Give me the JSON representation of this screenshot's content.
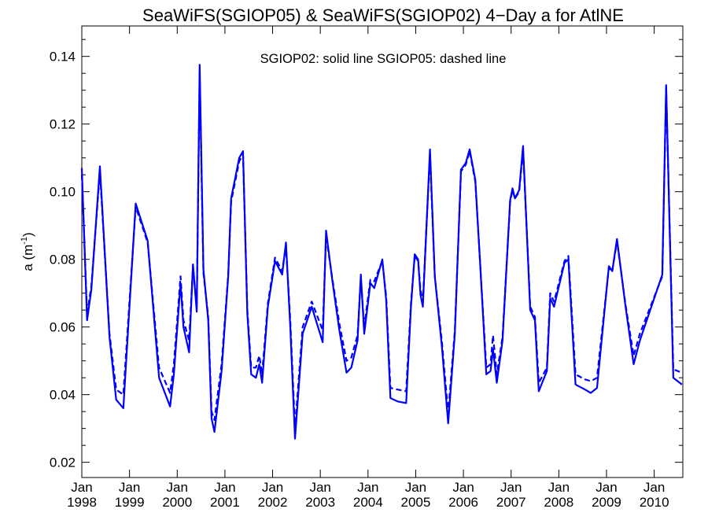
{
  "chart_data": {
    "type": "line",
    "title": "SeaWiFS(SGIOP05) & SeaWiFS(SGIOP02) 4−Day a for AtlNE",
    "annotation": "SGIOP02: solid line   SGIOP05: dashed line",
    "ylabel": "a (m",
    "ylabel_exponent": "-1",
    "ylabel_close": ")",
    "xlim": [
      1998.0,
      2010.6
    ],
    "ylim": [
      0.0155,
      0.149
    ],
    "yticks": [
      "0.02",
      "0.04",
      "0.06",
      "0.08",
      "0.10",
      "0.12",
      "0.14"
    ],
    "xticks": [
      {
        "month": "Jan",
        "year": "1998"
      },
      {
        "month": "Jan",
        "year": "1999"
      },
      {
        "month": "Jan",
        "year": "2000"
      },
      {
        "month": "Jan",
        "year": "2001"
      },
      {
        "month": "Jan",
        "year": "2002"
      },
      {
        "month": "Jan",
        "year": "2003"
      },
      {
        "month": "Jan",
        "year": "2004"
      },
      {
        "month": "Jan",
        "year": "2005"
      },
      {
        "month": "Jan",
        "year": "2006"
      },
      {
        "month": "Jan",
        "year": "2007"
      },
      {
        "month": "Jan",
        "year": "2008"
      },
      {
        "month": "Jan",
        "year": "2009"
      },
      {
        "month": "Jan",
        "year": "2010"
      }
    ],
    "grid": false,
    "color": "#0000ff",
    "series": [
      {
        "name": "SGIOP02",
        "style": "solid",
        "points": [
          [
            1998.0,
            0.107
          ],
          [
            1998.11,
            0.062
          ],
          [
            1998.2,
            0.071
          ],
          [
            1998.38,
            0.1075
          ],
          [
            1998.58,
            0.057
          ],
          [
            1998.72,
            0.0385
          ],
          [
            1998.87,
            0.036
          ],
          [
            1999.13,
            0.0965
          ],
          [
            1999.38,
            0.0855
          ],
          [
            1999.62,
            0.045
          ],
          [
            1999.85,
            0.0365
          ],
          [
            1999.93,
            0.046
          ],
          [
            2000.07,
            0.073
          ],
          [
            2000.13,
            0.06
          ],
          [
            2000.25,
            0.0525
          ],
          [
            2000.33,
            0.0785
          ],
          [
            2000.41,
            0.0645
          ],
          [
            2000.47,
            0.1375
          ],
          [
            2000.55,
            0.077
          ],
          [
            2000.65,
            0.062
          ],
          [
            2000.72,
            0.033
          ],
          [
            2000.78,
            0.029
          ],
          [
            2000.93,
            0.047
          ],
          [
            2001.07,
            0.075
          ],
          [
            2001.13,
            0.098
          ],
          [
            2001.3,
            0.11
          ],
          [
            2001.38,
            0.112
          ],
          [
            2001.47,
            0.064
          ],
          [
            2001.55,
            0.046
          ],
          [
            2001.65,
            0.045
          ],
          [
            2001.72,
            0.049
          ],
          [
            2001.78,
            0.0435
          ],
          [
            2001.9,
            0.066
          ],
          [
            2002.05,
            0.0795
          ],
          [
            2002.2,
            0.0755
          ],
          [
            2002.28,
            0.085
          ],
          [
            2002.37,
            0.06
          ],
          [
            2002.47,
            0.027
          ],
          [
            2002.63,
            0.058
          ],
          [
            2002.82,
            0.066
          ],
          [
            2003.05,
            0.0555
          ],
          [
            2003.12,
            0.0885
          ],
          [
            2003.25,
            0.074
          ],
          [
            2003.4,
            0.059
          ],
          [
            2003.55,
            0.0465
          ],
          [
            2003.65,
            0.048
          ],
          [
            2003.78,
            0.056
          ],
          [
            2003.85,
            0.0755
          ],
          [
            2003.92,
            0.058
          ],
          [
            2004.05,
            0.073
          ],
          [
            2004.13,
            0.0715
          ],
          [
            2004.3,
            0.08
          ],
          [
            2004.38,
            0.068
          ],
          [
            2004.47,
            0.039
          ],
          [
            2004.62,
            0.038
          ],
          [
            2004.8,
            0.0375
          ],
          [
            2004.9,
            0.066
          ],
          [
            2004.98,
            0.0815
          ],
          [
            2005.05,
            0.08
          ],
          [
            2005.1,
            0.0695
          ],
          [
            2005.15,
            0.066
          ],
          [
            2005.3,
            0.1125
          ],
          [
            2005.4,
            0.075
          ],
          [
            2005.55,
            0.054
          ],
          [
            2005.68,
            0.0315
          ],
          [
            2005.82,
            0.058
          ],
          [
            2005.95,
            0.1065
          ],
          [
            2006.05,
            0.1085
          ],
          [
            2006.13,
            0.1125
          ],
          [
            2006.25,
            0.1035
          ],
          [
            2006.35,
            0.079
          ],
          [
            2006.48,
            0.046
          ],
          [
            2006.57,
            0.047
          ],
          [
            2006.62,
            0.0535
          ],
          [
            2006.7,
            0.0435
          ],
          [
            2006.82,
            0.056
          ],
          [
            2006.98,
            0.0975
          ],
          [
            2007.03,
            0.101
          ],
          [
            2007.08,
            0.098
          ],
          [
            2007.17,
            0.1005
          ],
          [
            2007.25,
            0.1135
          ],
          [
            2007.4,
            0.065
          ],
          [
            2007.5,
            0.062
          ],
          [
            2007.58,
            0.041
          ],
          [
            2007.75,
            0.047
          ],
          [
            2007.82,
            0.0685
          ],
          [
            2007.9,
            0.066
          ],
          [
            2008.12,
            0.079
          ],
          [
            2008.2,
            0.08
          ],
          [
            2008.35,
            0.043
          ],
          [
            2008.55,
            0.0415
          ],
          [
            2008.67,
            0.0405
          ],
          [
            2008.8,
            0.042
          ],
          [
            2009.05,
            0.078
          ],
          [
            2009.12,
            0.0765
          ],
          [
            2009.22,
            0.086
          ],
          [
            2009.4,
            0.066
          ],
          [
            2009.57,
            0.049
          ],
          [
            2009.7,
            0.056
          ],
          [
            2010.17,
            0.0755
          ],
          [
            2010.25,
            0.1315
          ],
          [
            2010.4,
            0.045
          ],
          [
            2010.58,
            0.043
          ]
        ]
      },
      {
        "name": "SGIOP05",
        "style": "dashed",
        "points": [
          [
            1998.0,
            0.105
          ],
          [
            1998.11,
            0.064
          ],
          [
            1998.2,
            0.072
          ],
          [
            1998.38,
            0.106
          ],
          [
            1998.58,
            0.058
          ],
          [
            1998.72,
            0.0415
          ],
          [
            1998.87,
            0.04
          ],
          [
            1999.13,
            0.0955
          ],
          [
            1999.38,
            0.085
          ],
          [
            1999.62,
            0.048
          ],
          [
            1999.85,
            0.0405
          ],
          [
            1999.93,
            0.049
          ],
          [
            2000.07,
            0.075
          ],
          [
            2000.13,
            0.062
          ],
          [
            2000.25,
            0.056
          ],
          [
            2000.33,
            0.078
          ],
          [
            2000.41,
            0.066
          ],
          [
            2000.47,
            0.135
          ],
          [
            2000.55,
            0.076
          ],
          [
            2000.65,
            0.063
          ],
          [
            2000.72,
            0.035
          ],
          [
            2000.78,
            0.0325
          ],
          [
            2000.93,
            0.049
          ],
          [
            2001.07,
            0.0755
          ],
          [
            2001.13,
            0.097
          ],
          [
            2001.3,
            0.109
          ],
          [
            2001.38,
            0.111
          ],
          [
            2001.47,
            0.065
          ],
          [
            2001.55,
            0.048
          ],
          [
            2001.65,
            0.048
          ],
          [
            2001.72,
            0.0515
          ],
          [
            2001.78,
            0.046
          ],
          [
            2001.9,
            0.067
          ],
          [
            2002.05,
            0.0805
          ],
          [
            2002.2,
            0.0765
          ],
          [
            2002.28,
            0.084
          ],
          [
            2002.37,
            0.062
          ],
          [
            2002.47,
            0.03
          ],
          [
            2002.63,
            0.06
          ],
          [
            2002.82,
            0.0675
          ],
          [
            2003.05,
            0.059
          ],
          [
            2003.12,
            0.087
          ],
          [
            2003.25,
            0.0745
          ],
          [
            2003.4,
            0.061
          ],
          [
            2003.55,
            0.05
          ],
          [
            2003.65,
            0.051
          ],
          [
            2003.78,
            0.0575
          ],
          [
            2003.85,
            0.0745
          ],
          [
            2003.92,
            0.06
          ],
          [
            2004.05,
            0.074
          ],
          [
            2004.13,
            0.0735
          ],
          [
            2004.3,
            0.0795
          ],
          [
            2004.38,
            0.069
          ],
          [
            2004.47,
            0.042
          ],
          [
            2004.62,
            0.0415
          ],
          [
            2004.8,
            0.041
          ],
          [
            2004.9,
            0.067
          ],
          [
            2004.98,
            0.081
          ],
          [
            2005.05,
            0.0795
          ],
          [
            2005.1,
            0.071
          ],
          [
            2005.15,
            0.0675
          ],
          [
            2005.3,
            0.111
          ],
          [
            2005.4,
            0.075
          ],
          [
            2005.55,
            0.0555
          ],
          [
            2005.68,
            0.0345
          ],
          [
            2005.82,
            0.059
          ],
          [
            2005.95,
            0.106
          ],
          [
            2006.05,
            0.108
          ],
          [
            2006.13,
            0.112
          ],
          [
            2006.25,
            0.103
          ],
          [
            2006.35,
            0.079
          ],
          [
            2006.48,
            0.048
          ],
          [
            2006.57,
            0.049
          ],
          [
            2006.62,
            0.0575
          ],
          [
            2006.7,
            0.046
          ],
          [
            2006.82,
            0.057
          ],
          [
            2006.98,
            0.097
          ],
          [
            2007.03,
            0.1005
          ],
          [
            2007.08,
            0.098
          ],
          [
            2007.17,
            0.1
          ],
          [
            2007.25,
            0.1125
          ],
          [
            2007.4,
            0.066
          ],
          [
            2007.5,
            0.063
          ],
          [
            2007.58,
            0.0435
          ],
          [
            2007.75,
            0.048
          ],
          [
            2007.82,
            0.07
          ],
          [
            2007.9,
            0.0675
          ],
          [
            2008.12,
            0.0795
          ],
          [
            2008.2,
            0.081
          ],
          [
            2008.35,
            0.046
          ],
          [
            2008.55,
            0.0445
          ],
          [
            2008.67,
            0.044
          ],
          [
            2008.8,
            0.045
          ],
          [
            2009.05,
            0.0775
          ],
          [
            2009.12,
            0.0765
          ],
          [
            2009.22,
            0.0855
          ],
          [
            2009.4,
            0.0665
          ],
          [
            2009.57,
            0.0515
          ],
          [
            2009.7,
            0.058
          ],
          [
            2010.17,
            0.075
          ],
          [
            2010.25,
            0.1305
          ],
          [
            2010.4,
            0.0475
          ],
          [
            2010.58,
            0.0465
          ]
        ]
      }
    ]
  }
}
